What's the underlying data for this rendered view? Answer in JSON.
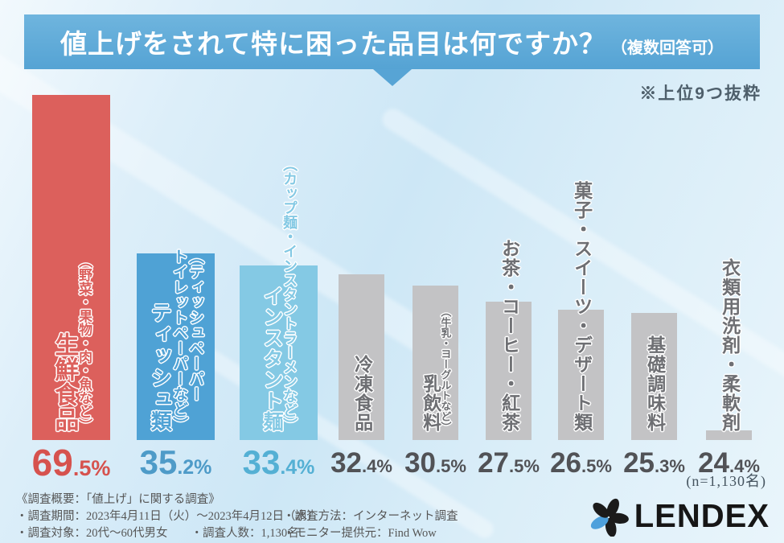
{
  "header": {
    "title": "値上げをされて特に困った品目は何ですか？",
    "suffix": "（複数回答可）",
    "note": "※上位9つ抜粋"
  },
  "chart_data": {
    "type": "bar",
    "title": "値上げをされて特に困った品目は何ですか？（複数回答可）",
    "note": "※上位9つ抜粋",
    "unit": "%",
    "ylim": [
      0,
      70
    ],
    "grid": false,
    "legend": "none",
    "categories": [
      "生鮮食品",
      "ティッシュ類",
      "インスタント麺",
      "冷凍食品",
      "乳飲料",
      "お茶・コーヒー・紅茶",
      "菓子・スイーツ・デザート類",
      "基礎調味料",
      "衣類用洗剤・柔軟剤"
    ],
    "subcategories": [
      "（野菜・果物・肉・魚など）",
      "（ティッシュペーパー\nトイレットペーパーなど）",
      "（カップ麺・インスタントラーメンなど）",
      "",
      "（牛乳・ヨーグルトなど）",
      "",
      "",
      "",
      ""
    ],
    "values": [
      69.5,
      35.2,
      33.4,
      32.4,
      30.5,
      27.5,
      26.5,
      25.3,
      24.4
    ],
    "bar_colors": [
      "#dc605c",
      "#4fa2d5",
      "#84c9e4",
      "#c3c3c5",
      "#c3c3c5",
      "#c3c3c5",
      "#c3c3c5",
      "#c3c3c5",
      "#c3c3c5"
    ],
    "label_colors": [
      "#dc605c",
      "#4fa2d5",
      "#84c9e4",
      "#6e6f73",
      "#6e6f73",
      "#6e6f73",
      "#6e6f73",
      "#6e6f73",
      "#6e6f73"
    ],
    "pct_colors": [
      "#d6524e",
      "#4e9bc8",
      "#54b0d4",
      "#515256",
      "#515256",
      "#515256",
      "#515256",
      "#515256",
      "#515256"
    ],
    "sample_label": "(n=1,130名)"
  },
  "footer": {
    "left": [
      "《調査概要：「値上げ」に関する調査》",
      "・調査期間：2023年4月11日（火）〜2023年4月12日（水）",
      "・調査対象：20代〜60代男女　　・調査人数：1,130名"
    ],
    "right": [
      "・調査方法：インターネット調査",
      "・モニター提供元：Find Wow"
    ]
  },
  "logo": {
    "text": "LENDEX"
  },
  "colors": {
    "banner": "#57a4d5",
    "logo_blue": "#4da0dc",
    "logo_black": "#1b1b1b"
  }
}
